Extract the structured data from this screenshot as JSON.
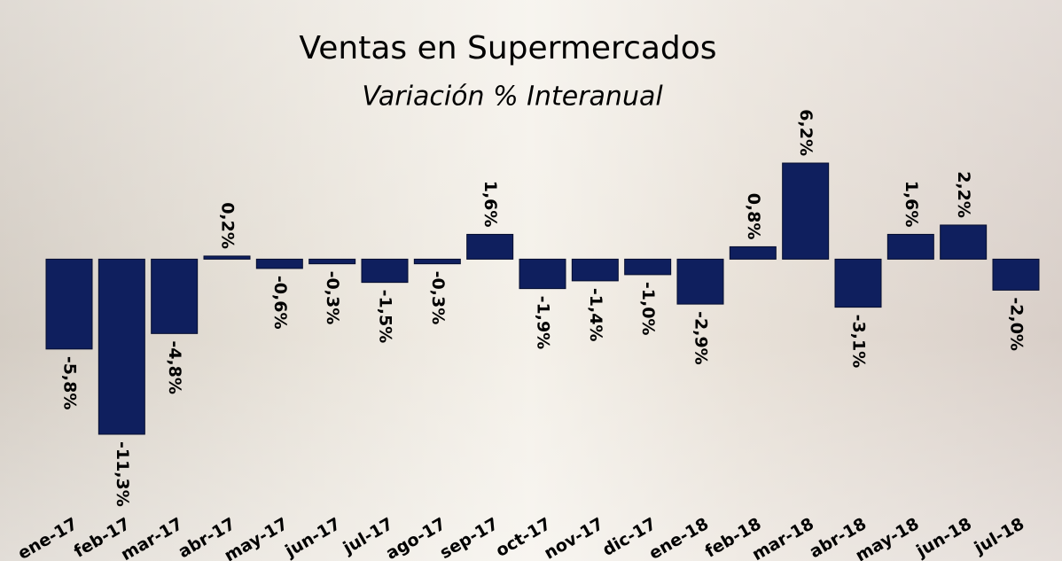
{
  "chart_data": {
    "type": "bar",
    "title": "Ventas en Supermercados",
    "subtitle": "Variación % Interanual",
    "categories": [
      "ene-17",
      "feb-17",
      "mar-17",
      "abr-17",
      "may-17",
      "jun-17",
      "jul-17",
      "ago-17",
      "sep-17",
      "oct-17",
      "nov-17",
      "dic-17",
      "ene-18",
      "feb-18",
      "mar-18",
      "abr-18",
      "may-18",
      "jun-18",
      "jul-18"
    ],
    "values": [
      -5.8,
      -11.3,
      -4.8,
      0.2,
      -0.6,
      -0.3,
      -1.5,
      -0.3,
      1.6,
      -1.9,
      -1.4,
      -1.0,
      -2.9,
      0.8,
      6.2,
      -3.1,
      1.6,
      2.2,
      -2.0
    ],
    "value_labels": [
      "-5,8%",
      "-11,3%",
      "-4,8%",
      "0,2%",
      "-0,6%",
      "-0,3%",
      "-1,5%",
      "-0,3%",
      "1,6%",
      "-1,9%",
      "-1,4%",
      "-1,0%",
      "-2,9%",
      "0,8%",
      "6,2%",
      "-3,1%",
      "1,6%",
      "2,2%",
      "-2,0%"
    ],
    "color": "#0f1f5e"
  }
}
